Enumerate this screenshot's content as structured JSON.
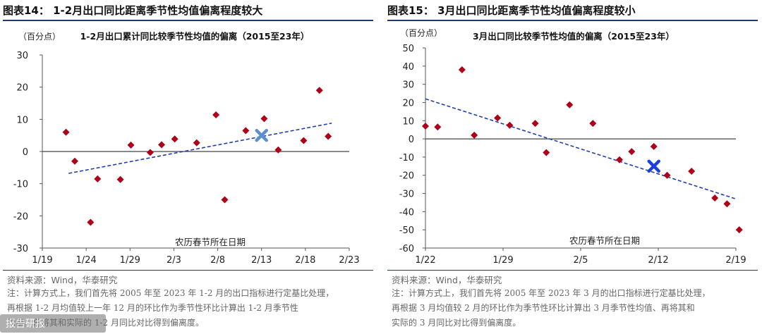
{
  "panels": [
    {
      "figure_title": "图表14：  1-2月出口同比距离季节性均值偏离程度较大",
      "source": "资料来源：Wind，华泰研究",
      "notes": [
        "注：计算方式上，我们首先将 2005 年至 2023 年 1-2 月的出口指标进行定基比处理，",
        "再根据 1-2 月均值较上一年 12 月的环比作为季节性环比计算出 1-2 月季节性",
        "均值，再将其和实际的 1-2 月同比对比得到偏离度。"
      ],
      "watermark": "报告研报"
    },
    {
      "figure_title": "图表15：  3月出口同比距离季节性均值偏离程度较小",
      "source": "资料来源：Wind，华泰研究",
      "notes": [
        "注：计算方式上，我们首先将 2005 年至 2023 年 3 月的出口指标进行定基比处理，",
        "再根据 3 月均值较 2 月的环比作为季节性环比计算出 3 月季节性均值、再将其和",
        "实际的 3 月同比对比得到偏离度。"
      ]
    }
  ],
  "chart_data": [
    {
      "type": "scatter",
      "title": "1-2月出口累计同比较季节性均值的偏离（2015至23年）",
      "unit_label": "（百分点）",
      "xlabel": "农历春节所在日期",
      "ylabel": "",
      "xlim": [
        0,
        35
      ],
      "ylim": [
        -30,
        30
      ],
      "yticks": [
        30,
        20,
        10,
        0,
        -10,
        -20,
        -30
      ],
      "xticks": [
        {
          "pos": 0,
          "label": "1/19"
        },
        {
          "pos": 5,
          "label": "1/24"
        },
        {
          "pos": 10,
          "label": "1/29"
        },
        {
          "pos": 15,
          "label": "2/3"
        },
        {
          "pos": 20,
          "label": "2/8"
        },
        {
          "pos": 25,
          "label": "2/13"
        },
        {
          "pos": 30,
          "label": "2/18"
        },
        {
          "pos": 35,
          "label": "2/23"
        }
      ],
      "points_x": [
        2.7,
        3.7,
        5.5,
        6.3,
        8.9,
        10.1,
        12.3,
        13.6,
        15.1,
        17.6,
        19.8,
        20.8,
        23.2,
        25.3,
        26.9,
        29.8,
        31.6,
        32.6
      ],
      "points_y": [
        6,
        -3,
        -22,
        -8.5,
        -8.7,
        2,
        -0.3,
        2.1,
        3.9,
        2.7,
        11.4,
        -15,
        6.5,
        10.2,
        0.5,
        3.4,
        19,
        4.7
      ],
      "highlight": {
        "x": 25,
        "y": 5
      },
      "trend": [
        {
          "x": 3,
          "y": -6.8
        },
        {
          "x": 33,
          "y": 8.8
        }
      ],
      "colors": {
        "marker": "#b00018",
        "highlight": "#5b8fd0",
        "trend": "#1f3fb0"
      }
    },
    {
      "type": "scatter",
      "title": "3月出口同比较季节性均值的偏离（2015至23年）",
      "unit_label": "（百分点）",
      "xlabel": "农历春节所在日期",
      "ylabel": "",
      "xlim": [
        0,
        28
      ],
      "ylim": [
        -60,
        50
      ],
      "yticks": [
        50,
        40,
        30,
        20,
        10,
        0,
        -10,
        -20,
        -30,
        -40,
        -50,
        -60
      ],
      "xticks": [
        {
          "pos": 0,
          "label": "1/22"
        },
        {
          "pos": 7,
          "label": "1/29"
        },
        {
          "pos": 14,
          "label": "2/5"
        },
        {
          "pos": 21,
          "label": "2/12"
        },
        {
          "pos": 28,
          "label": "2/19"
        }
      ],
      "points_x": [
        0,
        1.1,
        3.3,
        4.4,
        6.5,
        7.6,
        9.9,
        10.9,
        13.0,
        15.1,
        17.5,
        18.6,
        20.6,
        21.8,
        24.0,
        26.1,
        27.2,
        28.3
      ],
      "points_y": [
        7,
        6.5,
        38,
        2,
        11.5,
        7.5,
        8.5,
        -7.5,
        18.7,
        8.5,
        -11.5,
        -7,
        -4.2,
        -20,
        -17.8,
        -32.5,
        -35.7,
        -50
      ],
      "highlight": {
        "x": 20.6,
        "y": -15
      },
      "trend": [
        {
          "x": 0,
          "y": 22
        },
        {
          "x": 28,
          "y": -33
        }
      ],
      "colors": {
        "marker": "#b00018",
        "highlight": "#1d3fdc",
        "trend": "#1f3fb0"
      }
    }
  ]
}
